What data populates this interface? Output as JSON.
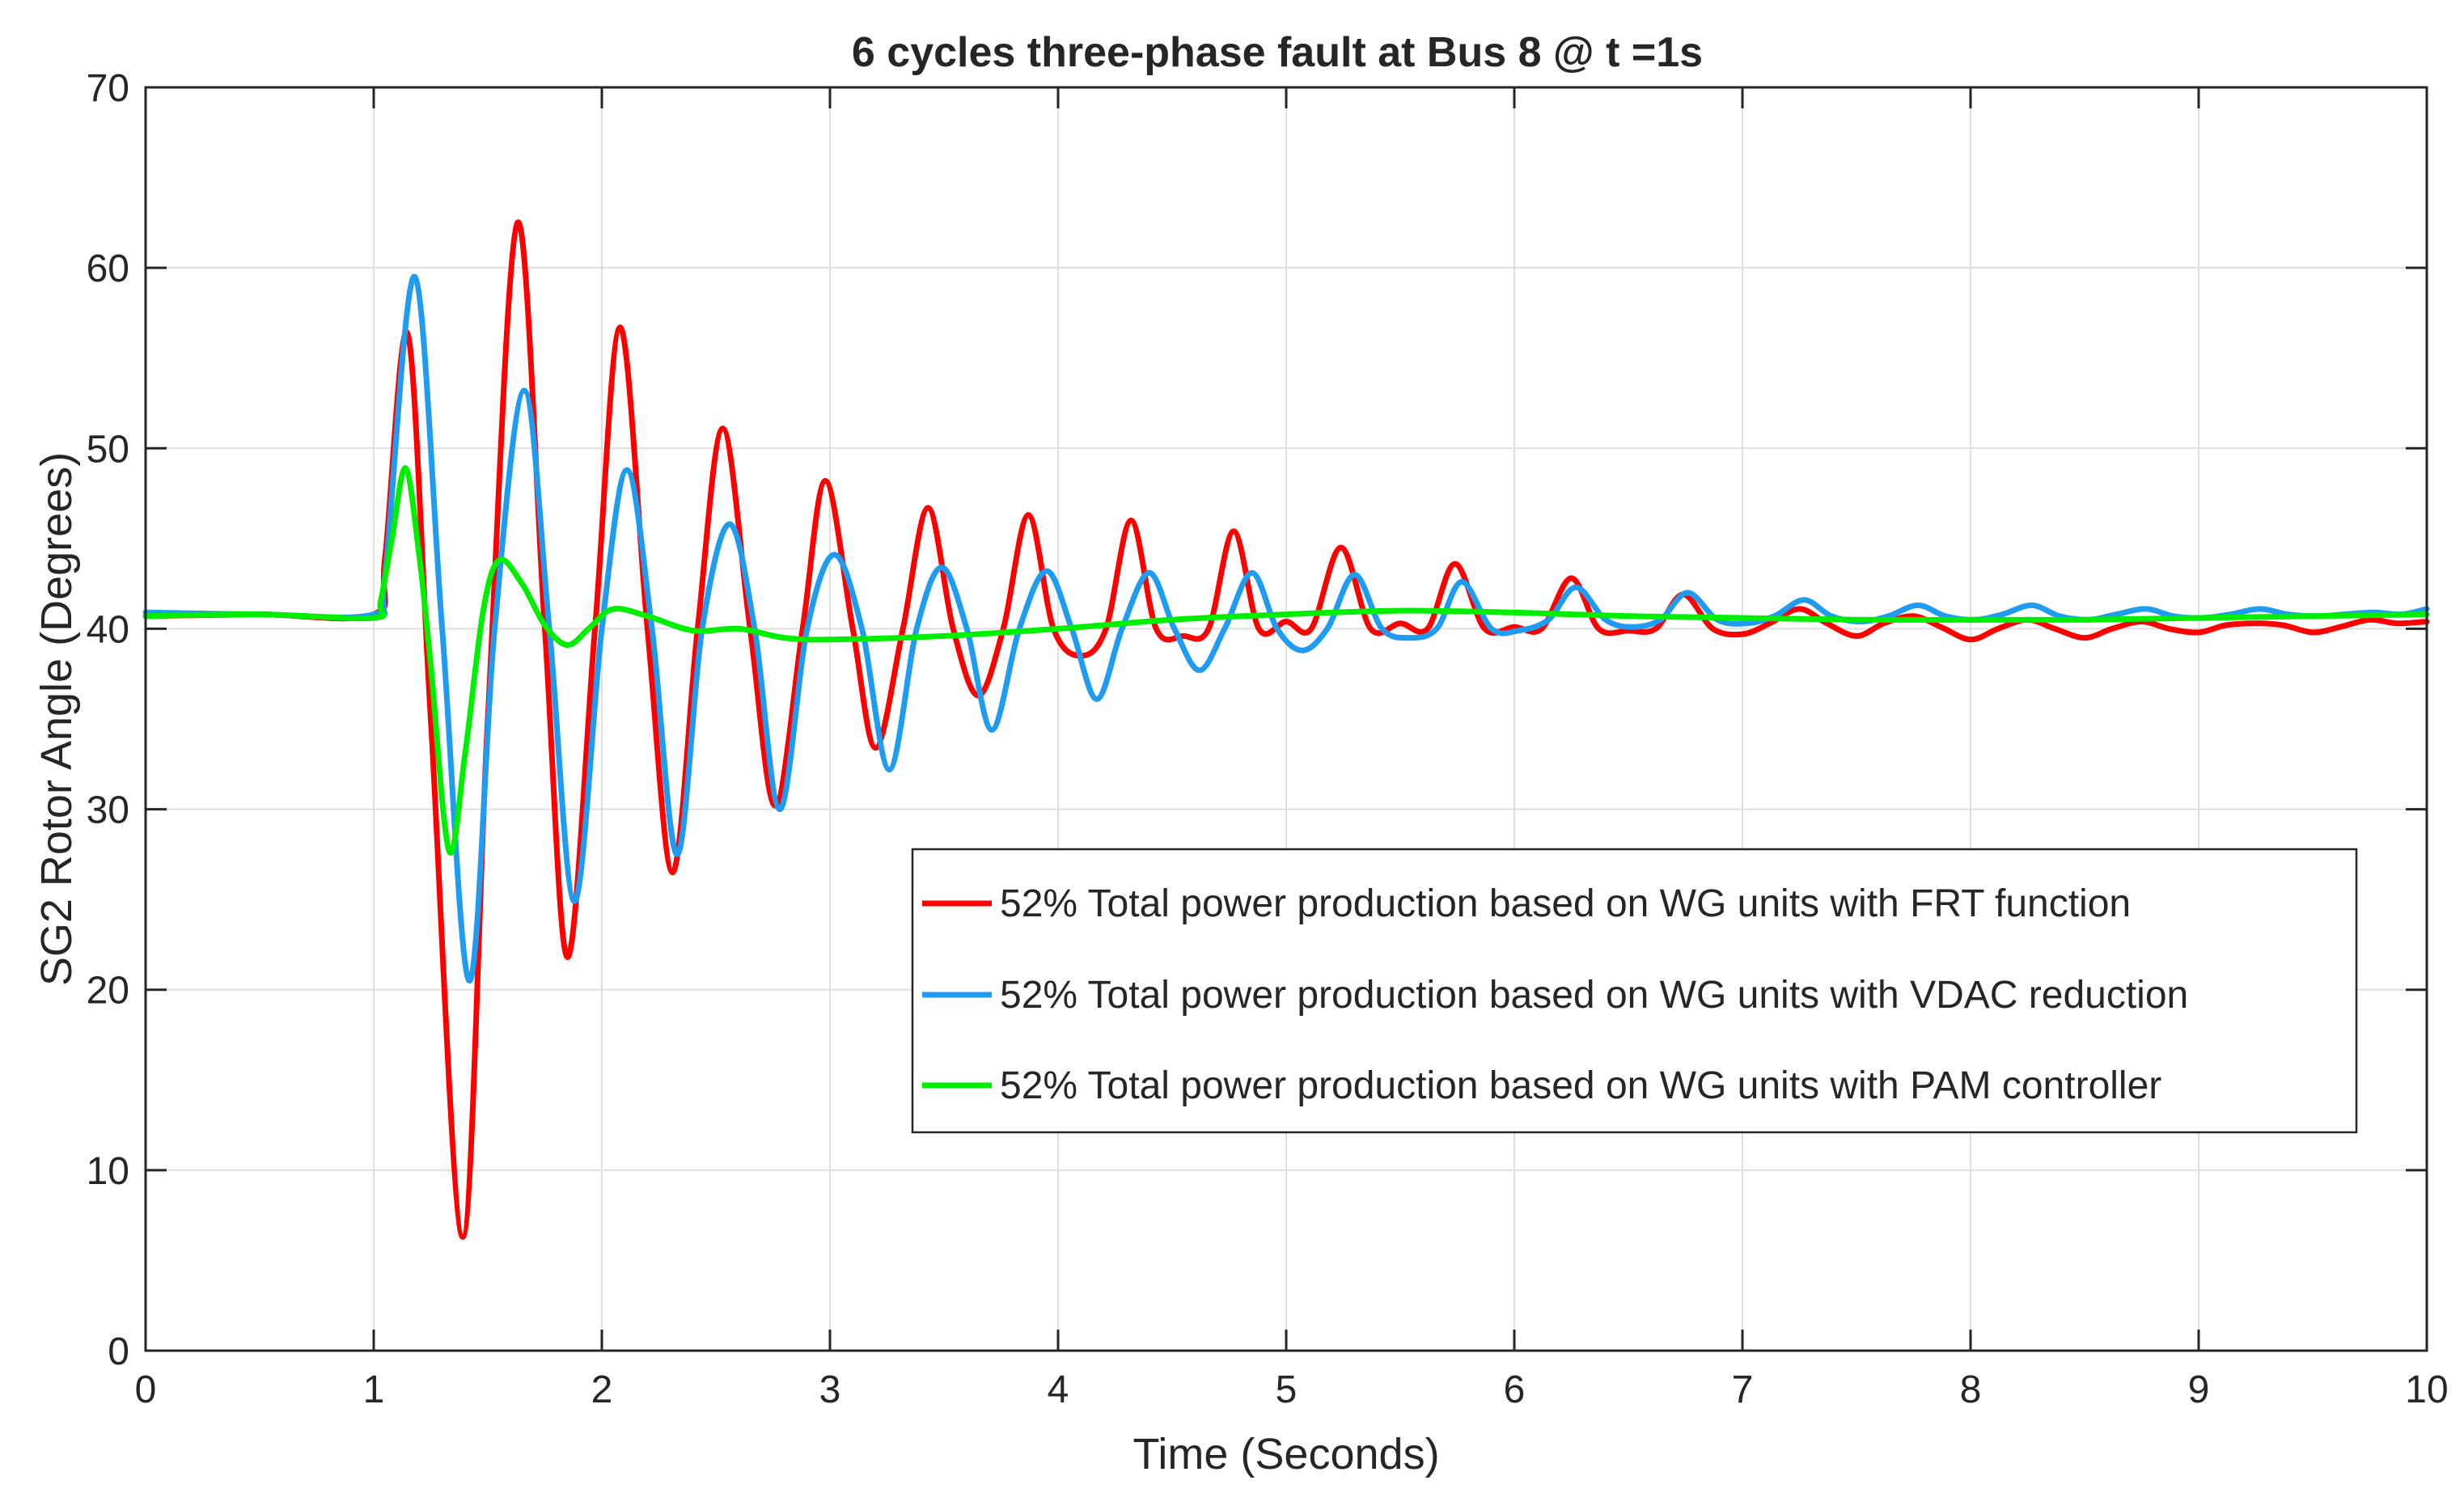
{
  "chart_data": {
    "type": "line",
    "title": "6 cycles three-phase fault at Bus 8 @ t =1s",
    "xlabel": "Time (Seconds)",
    "ylabel": "SG2 Rotor Angle (Degrees)",
    "xlim": [
      0,
      10
    ],
    "ylim": [
      0,
      70
    ],
    "xticks": [
      "0",
      "1",
      "2",
      "3",
      "4",
      "5",
      "6",
      "7",
      "8",
      "9",
      "10"
    ],
    "yticks": [
      "0",
      "10",
      "20",
      "30",
      "40",
      "50",
      "60",
      "70"
    ],
    "grid": true,
    "legend_position": "center-right",
    "series": [
      {
        "name": "52% Total power production based on WG units with FRT function",
        "color": "#ff0000",
        "x": [
          0,
          0.5,
          1.0,
          1.05,
          1.15,
          1.25,
          1.39,
          1.5,
          1.63,
          1.75,
          1.85,
          1.97,
          2.08,
          2.2,
          2.31,
          2.42,
          2.53,
          2.65,
          2.76,
          2.88,
          2.98,
          3.1,
          3.2,
          3.32,
          3.43,
          3.54,
          3.65,
          3.76,
          3.87,
          3.98,
          4.1,
          4.21,
          4.32,
          4.43,
          4.55,
          4.66,
          4.77,
          4.88,
          5.0,
          5.11,
          5.24,
          5.37,
          5.5,
          5.62,
          5.74,
          5.87,
          6.0,
          6.12,
          6.25,
          6.37,
          6.5,
          6.62,
          6.74,
          6.87,
          7.0,
          7.12,
          7.25,
          7.37,
          7.5,
          7.62,
          7.75,
          7.87,
          8.0,
          8.12,
          8.25,
          8.37,
          8.5,
          8.62,
          8.75,
          8.87,
          9.0,
          9.12,
          9.25,
          9.37,
          9.5,
          9.62,
          9.75,
          9.87,
          10.0
        ],
        "y": [
          40.7,
          40.8,
          40.8,
          44,
          56.3,
          35,
          6.3,
          35,
          62.5,
          40,
          21.8,
          40,
          56.7,
          40,
          26.5,
          40,
          51.1,
          40,
          30.2,
          40,
          48.2,
          40,
          33.4,
          40,
          46.7,
          40,
          36.3,
          40,
          46.3,
          40,
          38.5,
          40,
          46,
          40,
          39.6,
          40,
          45.4,
          40,
          40.4,
          40,
          44.5,
          40,
          40.3,
          40,
          43.6,
          40,
          40.1,
          40,
          42.8,
          40,
          39.9,
          40,
          41.9,
          40,
          39.7,
          40.3,
          41.1,
          40.3,
          39.6,
          40.3,
          40.7,
          40.1,
          39.4,
          40,
          40.5,
          40,
          39.5,
          40,
          40.4,
          40,
          39.8,
          40.2,
          40.3,
          40.2,
          39.8,
          40.1,
          40.5,
          40.3,
          40.4
        ]
      },
      {
        "name": "52% Total power production based on WG units with VDAC reduction",
        "color": "#1f9bf0",
        "x": [
          0,
          0.5,
          1.0,
          1.05,
          1.18,
          1.3,
          1.42,
          1.53,
          1.66,
          1.77,
          1.88,
          2.0,
          2.11,
          2.22,
          2.33,
          2.44,
          2.56,
          2.67,
          2.78,
          2.9,
          3.02,
          3.14,
          3.26,
          3.38,
          3.49,
          3.6,
          3.71,
          3.83,
          3.95,
          4.06,
          4.17,
          4.28,
          4.4,
          4.51,
          4.62,
          4.73,
          4.85,
          4.96,
          5.07,
          5.18,
          5.3,
          5.42,
          5.54,
          5.66,
          5.77,
          5.9,
          6.02,
          6.15,
          6.27,
          6.4,
          6.52,
          6.64,
          6.76,
          6.89,
          7.02,
          7.14,
          7.27,
          7.39,
          7.52,
          7.64,
          7.77,
          7.89,
          8.02,
          8.14,
          8.27,
          8.39,
          8.52,
          8.64,
          8.77,
          8.89,
          9.02,
          9.14,
          9.27,
          9.39,
          9.52,
          9.64,
          9.77,
          9.89,
          10.0
        ],
        "y": [
          40.9,
          40.8,
          40.8,
          43,
          59.5,
          40,
          20.5,
          40,
          53.2,
          40,
          24.9,
          40,
          48.8,
          40,
          27.5,
          40,
          45.8,
          40,
          30,
          40,
          44.1,
          40,
          32.2,
          40,
          43.4,
          40,
          34.4,
          40,
          43.2,
          40,
          36.1,
          40,
          43.1,
          40,
          37.7,
          40,
          43.1,
          40,
          38.8,
          40,
          43,
          40,
          39.5,
          40,
          42.6,
          40,
          39.9,
          40.5,
          42.3,
          40.5,
          40.1,
          40.5,
          42.0,
          40.5,
          40.3,
          40.7,
          41.6,
          40.7,
          40.4,
          40.7,
          41.3,
          40.7,
          40.5,
          40.8,
          41.3,
          40.7,
          40.5,
          40.8,
          41.1,
          40.7,
          40.6,
          40.8,
          41.1,
          40.8,
          40.7,
          40.8,
          40.9,
          40.8,
          41.1
        ]
      },
      {
        "name": "52% Total power production based on WG units with PAM controller",
        "color": "#00ee00",
        "x": [
          0,
          0.5,
          1.0,
          1.03,
          1.08,
          1.14,
          1.2,
          1.25,
          1.33,
          1.4,
          1.48,
          1.55,
          1.65,
          1.75,
          1.85,
          1.95,
          2.05,
          2.2,
          2.4,
          2.6,
          2.8,
          3.0,
          3.5,
          4.0,
          4.5,
          5.0,
          5.5,
          6.0,
          6.5,
          7.0,
          7.5,
          8.0,
          8.5,
          9.0,
          9.5,
          10.0
        ],
        "y": [
          40.7,
          40.8,
          40.6,
          41.5,
          45,
          48.9,
          44,
          38,
          27.7,
          33,
          41,
          43.8,
          42.5,
          40.2,
          39.1,
          40.1,
          41.1,
          40.7,
          39.9,
          40.0,
          39.5,
          39.4,
          39.6,
          40.0,
          40.5,
          40.8,
          41.0,
          40.9,
          40.7,
          40.6,
          40.5,
          40.5,
          40.5,
          40.6,
          40.7,
          40.8
        ]
      }
    ]
  }
}
